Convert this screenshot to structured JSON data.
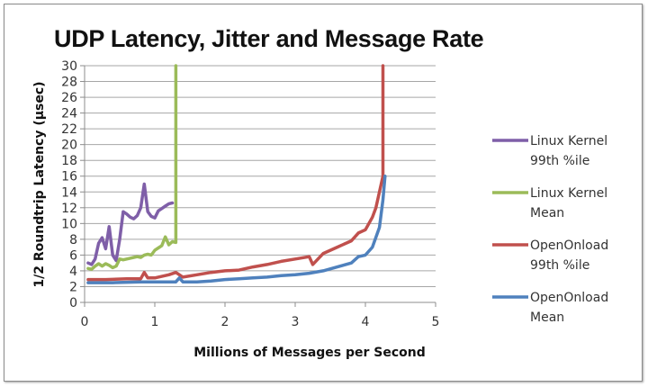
{
  "chart_data": {
    "type": "line",
    "title": "UDP Latency, Jitter and Message Rate",
    "xlabel": "Millions of Messages per Second",
    "ylabel": "1/2 Roundtrip Latency (µsec)",
    "xlim": [
      0,
      5
    ],
    "ylim": [
      0,
      30
    ],
    "x_ticks": [
      "0",
      "1",
      "2",
      "3",
      "4",
      "5"
    ],
    "y_ticks": [
      "0",
      "2",
      "4",
      "6",
      "8",
      "10",
      "12",
      "14",
      "16",
      "18",
      "20",
      "22",
      "24",
      "26",
      "28",
      "30"
    ],
    "grid": {
      "horizontal": true,
      "vertical": false
    },
    "legend_position": "right",
    "series": [
      {
        "name": "Linux Kernel 99th %ile",
        "legend_lines": [
          "Linux Kernel",
          "99th %ile"
        ],
        "color": "#7f5fa8",
        "points": [
          [
            0.05,
            5.0
          ],
          [
            0.1,
            4.8
          ],
          [
            0.15,
            5.5
          ],
          [
            0.2,
            7.5
          ],
          [
            0.25,
            8.2
          ],
          [
            0.3,
            6.8
          ],
          [
            0.35,
            9.6
          ],
          [
            0.4,
            6.0
          ],
          [
            0.45,
            5.3
          ],
          [
            0.5,
            8.0
          ],
          [
            0.55,
            11.5
          ],
          [
            0.6,
            11.2
          ],
          [
            0.65,
            10.8
          ],
          [
            0.7,
            10.6
          ],
          [
            0.75,
            11.0
          ],
          [
            0.8,
            12.0
          ],
          [
            0.85,
            15.0
          ],
          [
            0.9,
            11.5
          ],
          [
            0.95,
            10.9
          ],
          [
            1.0,
            10.7
          ],
          [
            1.05,
            11.6
          ],
          [
            1.1,
            11.9
          ],
          [
            1.15,
            12.2
          ],
          [
            1.2,
            12.5
          ],
          [
            1.25,
            12.6
          ]
        ]
      },
      {
        "name": "Linux Kernel Mean",
        "legend_lines": [
          "Linux Kernel",
          "Mean"
        ],
        "color": "#9bbb59",
        "points": [
          [
            0.05,
            4.3
          ],
          [
            0.1,
            4.2
          ],
          [
            0.15,
            4.6
          ],
          [
            0.2,
            4.9
          ],
          [
            0.25,
            4.6
          ],
          [
            0.3,
            4.9
          ],
          [
            0.35,
            4.7
          ],
          [
            0.4,
            4.4
          ],
          [
            0.45,
            4.6
          ],
          [
            0.5,
            5.5
          ],
          [
            0.55,
            5.4
          ],
          [
            0.6,
            5.5
          ],
          [
            0.65,
            5.6
          ],
          [
            0.7,
            5.7
          ],
          [
            0.75,
            5.8
          ],
          [
            0.8,
            5.7
          ],
          [
            0.85,
            6.0
          ],
          [
            0.9,
            6.1
          ],
          [
            0.95,
            6.0
          ],
          [
            1.0,
            6.6
          ],
          [
            1.05,
            6.9
          ],
          [
            1.1,
            7.2
          ],
          [
            1.15,
            8.3
          ],
          [
            1.2,
            7.3
          ],
          [
            1.25,
            7.7
          ],
          [
            1.3,
            7.6
          ],
          [
            1.3,
            30.0
          ]
        ]
      },
      {
        "name": "OpenOnload 99th %ile",
        "legend_lines": [
          "OpenOnload",
          "99th %ile"
        ],
        "color": "#c0504d",
        "points": [
          [
            0.05,
            2.9
          ],
          [
            0.3,
            2.9
          ],
          [
            0.6,
            3.0
          ],
          [
            0.8,
            3.0
          ],
          [
            0.85,
            3.8
          ],
          [
            0.9,
            3.1
          ],
          [
            1.0,
            3.1
          ],
          [
            1.2,
            3.5
          ],
          [
            1.3,
            3.8
          ],
          [
            1.4,
            3.2
          ],
          [
            1.6,
            3.5
          ],
          [
            1.8,
            3.8
          ],
          [
            2.0,
            4.0
          ],
          [
            2.2,
            4.1
          ],
          [
            2.4,
            4.5
          ],
          [
            2.6,
            4.8
          ],
          [
            2.8,
            5.2
          ],
          [
            3.0,
            5.5
          ],
          [
            3.2,
            5.8
          ],
          [
            3.25,
            4.8
          ],
          [
            3.4,
            6.2
          ],
          [
            3.6,
            7.0
          ],
          [
            3.8,
            7.8
          ],
          [
            3.9,
            8.8
          ],
          [
            4.0,
            9.2
          ],
          [
            4.1,
            10.8
          ],
          [
            4.15,
            12.0
          ],
          [
            4.2,
            14.0
          ],
          [
            4.25,
            16.0
          ],
          [
            4.25,
            30.0
          ]
        ]
      },
      {
        "name": "OpenOnload Mean",
        "legend_lines": [
          "OpenOnload",
          "Mean"
        ],
        "color": "#4f81bd",
        "points": [
          [
            0.05,
            2.5
          ],
          [
            0.4,
            2.5
          ],
          [
            0.8,
            2.6
          ],
          [
            1.0,
            2.6
          ],
          [
            1.3,
            2.6
          ],
          [
            1.35,
            3.1
          ],
          [
            1.4,
            2.6
          ],
          [
            1.6,
            2.6
          ],
          [
            1.8,
            2.7
          ],
          [
            2.0,
            2.9
          ],
          [
            2.2,
            3.0
          ],
          [
            2.4,
            3.1
          ],
          [
            2.6,
            3.2
          ],
          [
            2.8,
            3.4
          ],
          [
            3.0,
            3.5
          ],
          [
            3.2,
            3.7
          ],
          [
            3.4,
            4.0
          ],
          [
            3.6,
            4.5
          ],
          [
            3.8,
            5.0
          ],
          [
            3.9,
            5.8
          ],
          [
            4.0,
            6.0
          ],
          [
            4.1,
            7.0
          ],
          [
            4.2,
            9.5
          ],
          [
            4.25,
            13.0
          ],
          [
            4.28,
            16.0
          ]
        ]
      }
    ]
  }
}
